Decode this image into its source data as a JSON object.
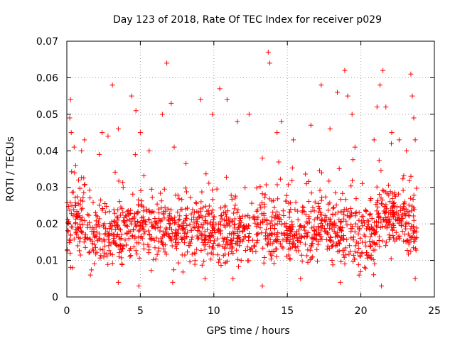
{
  "chart_data": {
    "type": "scatter",
    "title": "Day 123 of 2018, Rate Of TEC Index for receiver p029",
    "xlabel": "GPS time / hours",
    "ylabel": "ROTI / TECUs",
    "xlim": [
      0,
      25
    ],
    "ylim": [
      0,
      0.07
    ],
    "x_ticks": [
      "0",
      "5",
      "10",
      "15",
      "20",
      "25"
    ],
    "y_ticks": [
      "0",
      "0.01",
      "0.02",
      "0.03",
      "0.04",
      "0.05",
      "0.06",
      "0.07"
    ],
    "grid": true,
    "marker": "plus",
    "color": "#ff0000",
    "legend": "none",
    "data_range_x": [
      0,
      23.8
    ],
    "series": [
      {
        "points": [
          [
            0.1,
            0.018
          ],
          [
            0.2,
            0.049
          ],
          [
            0.25,
            0.054
          ],
          [
            0.3,
            0.045
          ],
          [
            0.5,
            0.041
          ],
          [
            0.6,
            0.036
          ],
          [
            0.8,
            0.032
          ],
          [
            1.0,
            0.04
          ],
          [
            1.2,
            0.043
          ],
          [
            2.2,
            0.039
          ],
          [
            2.4,
            0.045
          ],
          [
            2.8,
            0.044
          ],
          [
            3.1,
            0.058
          ],
          [
            3.5,
            0.046
          ],
          [
            4.4,
            0.055
          ],
          [
            4.7,
            0.051
          ],
          [
            5.0,
            0.045
          ],
          [
            5.6,
            0.04
          ],
          [
            6.5,
            0.05
          ],
          [
            6.8,
            0.064
          ],
          [
            7.1,
            0.053
          ],
          [
            7.3,
            0.041
          ],
          [
            9.1,
            0.054
          ],
          [
            9.9,
            0.05
          ],
          [
            10.4,
            0.057
          ],
          [
            10.9,
            0.054
          ],
          [
            11.6,
            0.048
          ],
          [
            12.4,
            0.05
          ],
          [
            13.3,
            0.038
          ],
          [
            13.7,
            0.067
          ],
          [
            13.8,
            0.064
          ],
          [
            14.3,
            0.045
          ],
          [
            14.6,
            0.048
          ],
          [
            15.4,
            0.043
          ],
          [
            16.6,
            0.047
          ],
          [
            17.3,
            0.058
          ],
          [
            17.9,
            0.046
          ],
          [
            18.4,
            0.056
          ],
          [
            18.9,
            0.062
          ],
          [
            19.1,
            0.055
          ],
          [
            19.4,
            0.05
          ],
          [
            19.6,
            0.041
          ],
          [
            20.9,
            0.043
          ],
          [
            21.1,
            0.052
          ],
          [
            21.3,
            0.058
          ],
          [
            21.5,
            0.062
          ],
          [
            21.7,
            0.052
          ],
          [
            22.1,
            0.045
          ],
          [
            22.6,
            0.043
          ],
          [
            23.1,
            0.04
          ],
          [
            23.4,
            0.061
          ],
          [
            23.5,
            0.055
          ],
          [
            23.6,
            0.049
          ],
          [
            23.7,
            0.043
          ],
          [
            0.4,
            0.008
          ],
          [
            1.6,
            0.006
          ],
          [
            3.5,
            0.004
          ],
          [
            4.9,
            0.003
          ],
          [
            7.2,
            0.004
          ],
          [
            9.4,
            0.005
          ],
          [
            11.3,
            0.005
          ],
          [
            13.3,
            0.003
          ],
          [
            15.9,
            0.005
          ],
          [
            18.6,
            0.004
          ],
          [
            21.4,
            0.003
          ],
          [
            23.7,
            0.005
          ]
        ]
      }
    ]
  }
}
